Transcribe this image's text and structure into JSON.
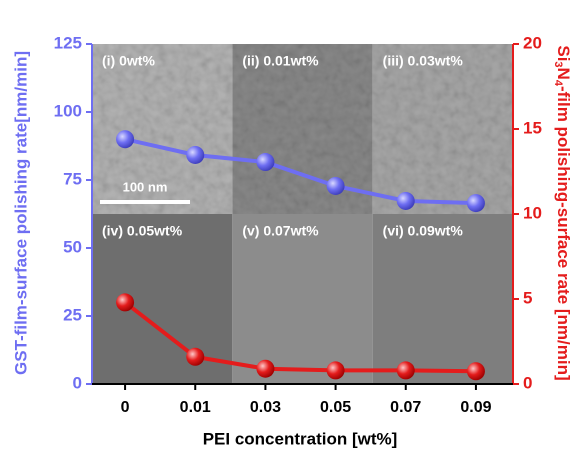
{
  "chart_data": {
    "type": "line",
    "x_label": "PEI concentration [wt%]",
    "y_label": "GST-film-surface polishing rate[nm/min]",
    "y2_label_parts": [
      "Si",
      "3",
      "N",
      "4",
      "-film polishing-surface rate [nm/min]"
    ],
    "categories": [
      "0",
      "0.01",
      "0.03",
      "0.05",
      "0.07",
      "0.09"
    ],
    "series": [
      {
        "color": "#6e6ef2",
        "values": [
          90,
          84.2,
          81.6,
          72.8,
          67.3,
          66.5
        ]
      },
      {
        "color": "#e41c1c",
        "axis": "y2",
        "values": [
          4.8,
          1.6,
          0.9,
          0.8,
          0.8,
          0.75
        ]
      }
    ],
    "ylim": [
      0,
      125
    ],
    "yticks": [
      0,
      25,
      50,
      75,
      100,
      125
    ],
    "y2lim": [
      0,
      20
    ],
    "y2ticks": [
      0,
      5,
      10,
      15,
      20
    ],
    "panel_labels": [
      "(i) 0wt%",
      "(ii) 0.01wt%",
      "(iii) 0.03wt%",
      "(iv) 0.05wt%",
      "(v) 0.07wt%",
      "(vi) 0.09wt%"
    ],
    "scale_bar": "100 nm"
  }
}
